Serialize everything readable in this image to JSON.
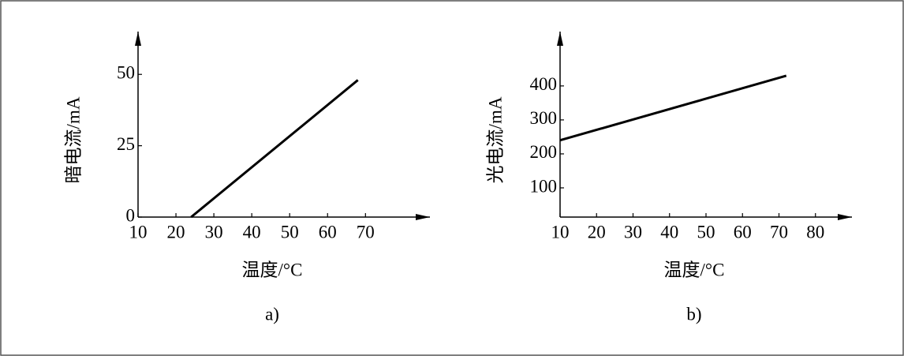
{
  "chart_data": [
    {
      "type": "line",
      "caption": "a)",
      "xlabel": "温度/°C",
      "ylabel": "暗电流/mA",
      "x": [
        24,
        68
      ],
      "values": [
        0,
        48
      ],
      "color": "#000000",
      "xlim": [
        10,
        87
      ],
      "ylim": [
        0,
        65
      ],
      "xticks": [
        10,
        20,
        30,
        40,
        50,
        60,
        70
      ],
      "yticks": [
        0,
        25,
        50
      ]
    },
    {
      "type": "line",
      "caption": "b)",
      "xlabel": "温度/°C",
      "ylabel": "光电流/mA",
      "x": [
        10,
        72
      ],
      "values": [
        240,
        430
      ],
      "color": "#000000",
      "xlim": [
        10,
        90
      ],
      "ylim": [
        14,
        560
      ],
      "xticks": [
        10,
        20,
        30,
        40,
        50,
        60,
        70,
        80
      ],
      "yticks": [
        100,
        200,
        300,
        400
      ]
    }
  ]
}
